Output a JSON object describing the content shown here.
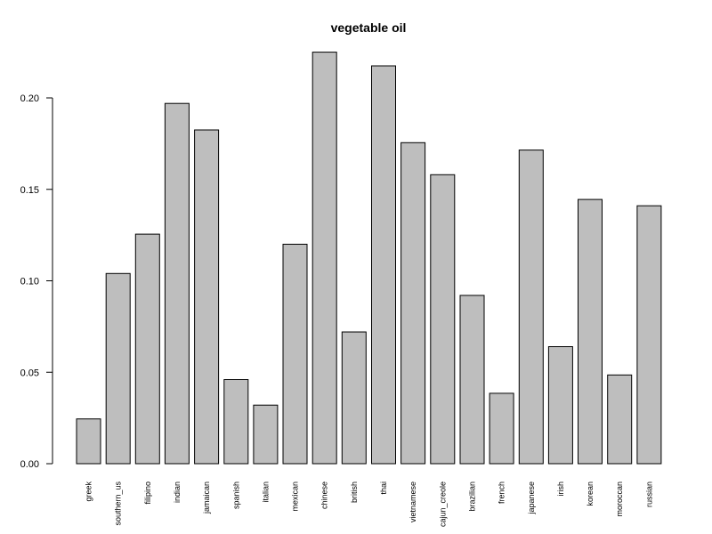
{
  "chart_data": {
    "type": "bar",
    "title": "vegetable oil",
    "xlabel": "",
    "ylabel": "",
    "ylim": [
      0,
      0.225
    ],
    "yticks": [
      "0.00",
      "0.05",
      "0.10",
      "0.15",
      "0.20"
    ],
    "grid": false,
    "categories": [
      "greek",
      "southern_us",
      "filipino",
      "indian",
      "jamaican",
      "spanish",
      "italian",
      "mexican",
      "chinese",
      "british",
      "thai",
      "vietnamese",
      "cajun_creole",
      "brazilian",
      "french",
      "japanese",
      "irish",
      "korean",
      "moroccan",
      "russian"
    ],
    "values": [
      0.0245,
      0.104,
      0.1255,
      0.197,
      0.1825,
      0.046,
      0.032,
      0.12,
      0.225,
      0.072,
      0.2175,
      0.1755,
      0.158,
      0.092,
      0.0385,
      0.1715,
      0.064,
      0.1445,
      0.0485,
      0.141
    ],
    "colors": {
      "bar_fill": "#bebebe",
      "bar_stroke": "#000000"
    }
  }
}
